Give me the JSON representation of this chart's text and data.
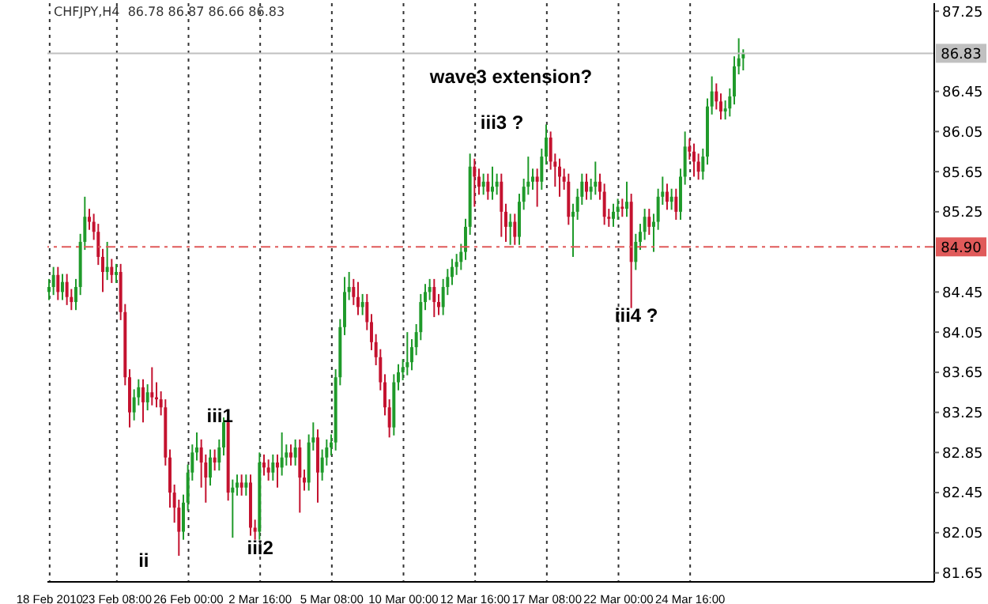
{
  "chart_data": {
    "type": "candlestick",
    "title": "CHFJPY,H4  86.78 86.87 86.66 86.83",
    "categories": [
      "18 Feb 2010",
      null,
      null,
      null,
      null,
      null,
      null,
      null,
      null,
      null,
      null,
      null,
      null,
      null,
      null,
      "23 Feb 08:00",
      null,
      null,
      null,
      null,
      null,
      null,
      null,
      null,
      null,
      null,
      null,
      null,
      null,
      null,
      null,
      "26 Feb 00:00",
      null,
      null,
      null,
      null,
      null,
      null,
      null,
      null,
      null,
      null,
      null,
      null,
      null,
      null,
      null,
      "2 Mar 16:00",
      null,
      null,
      null,
      null,
      null,
      null,
      null,
      null,
      null,
      null,
      null,
      null,
      null,
      null,
      null,
      "5 Mar 08:00",
      null,
      null,
      null,
      null,
      null,
      null,
      null,
      null,
      null,
      null,
      null,
      null,
      null,
      null,
      null,
      "10 Mar 00:00",
      null,
      null,
      null,
      null,
      null,
      null,
      null,
      null,
      null,
      null,
      null,
      null,
      null,
      null,
      null,
      "12 Mar 16:00",
      null,
      null,
      null,
      null,
      null,
      null,
      null,
      null,
      null,
      null,
      null,
      null,
      null,
      null,
      null,
      "17 Mar 08:00",
      null,
      null,
      null,
      null,
      null,
      null,
      null,
      null,
      null,
      null,
      null,
      null,
      null,
      null,
      null,
      "22 Mar 00:00",
      null,
      null,
      null,
      null,
      null,
      null,
      null,
      null,
      null,
      null,
      null,
      null,
      null,
      null,
      null,
      "24 Mar 16:00",
      null,
      null,
      null,
      null,
      null,
      null,
      null,
      null,
      null,
      null,
      null,
      null,
      null,
      null,
      null,
      null,
      null,
      null,
      null,
      null,
      null,
      null,
      null,
      null,
      null,
      null,
      null,
      null,
      null,
      null,
      null,
      null,
      null,
      null,
      null,
      null,
      null,
      null,
      null,
      null,
      null,
      null,
      null,
      null,
      null,
      null,
      null,
      null,
      null,
      null,
      null,
      null,
      null,
      null
    ],
    "ohlc": [
      [
        84.45,
        84.58,
        84.37,
        84.5
      ],
      [
        84.5,
        84.7,
        84.42,
        84.62
      ],
      [
        84.62,
        84.7,
        84.37,
        84.45
      ],
      [
        84.45,
        84.63,
        84.37,
        84.55
      ],
      [
        84.55,
        84.63,
        84.32,
        84.4
      ],
      [
        84.4,
        84.48,
        84.27,
        84.35
      ],
      [
        84.35,
        84.58,
        84.27,
        84.5
      ],
      [
        84.5,
        85.03,
        84.42,
        84.95
      ],
      [
        84.95,
        85.4,
        84.87,
        85.2
      ],
      [
        85.2,
        85.28,
        85.07,
        85.15
      ],
      [
        85.15,
        85.23,
        84.97,
        85.05
      ],
      [
        85.05,
        85.13,
        84.72,
        84.8
      ],
      [
        84.8,
        84.88,
        84.45,
        84.65
      ],
      [
        84.65,
        84.95,
        84.57,
        84.7
      ],
      [
        84.7,
        84.78,
        84.54,
        84.62
      ],
      [
        84.62,
        84.73,
        84.54,
        84.65
      ],
      [
        84.65,
        84.73,
        84.17,
        84.25
      ],
      [
        84.25,
        84.33,
        83.52,
        83.6
      ],
      [
        83.6,
        83.68,
        83.1,
        83.25
      ],
      [
        83.25,
        83.48,
        83.17,
        83.4
      ],
      [
        83.4,
        83.58,
        83.32,
        83.5
      ],
      [
        83.5,
        83.58,
        83.15,
        83.35
      ],
      [
        83.35,
        83.53,
        83.27,
        83.45
      ],
      [
        83.45,
        83.7,
        83.32,
        83.4
      ],
      [
        83.4,
        83.55,
        83.3,
        83.38
      ],
      [
        83.38,
        83.46,
        83.22,
        83.3
      ],
      [
        83.3,
        83.38,
        82.72,
        82.8
      ],
      [
        82.8,
        82.88,
        82.3,
        82.45
      ],
      [
        82.45,
        82.53,
        82.15,
        82.3
      ],
      [
        82.3,
        82.38,
        81.82,
        82.06
      ],
      [
        82.06,
        82.43,
        81.98,
        82.35
      ],
      [
        82.35,
        82.73,
        82.27,
        82.65
      ],
      [
        82.65,
        82.93,
        82.57,
        82.85
      ],
      [
        82.85,
        83.05,
        82.77,
        82.9
      ],
      [
        82.9,
        82.98,
        82.5,
        82.75
      ],
      [
        82.75,
        82.83,
        82.35,
        82.6
      ],
      [
        82.6,
        82.88,
        82.52,
        82.8
      ],
      [
        82.8,
        82.88,
        82.67,
        82.75
      ],
      [
        82.75,
        82.98,
        82.67,
        82.9
      ],
      [
        82.9,
        83.2,
        82.82,
        83.15
      ],
      [
        83.15,
        83.2,
        82.37,
        82.45
      ],
      [
        82.45,
        82.58,
        82.0,
        82.5
      ],
      [
        82.5,
        82.63,
        82.42,
        82.55
      ],
      [
        82.55,
        82.63,
        82.42,
        82.5
      ],
      [
        82.5,
        82.63,
        82.42,
        82.55
      ],
      [
        82.55,
        82.63,
        82.02,
        82.1
      ],
      [
        82.1,
        82.18,
        81.98,
        82.06
      ],
      [
        82.06,
        82.85,
        81.98,
        82.75
      ],
      [
        82.75,
        82.83,
        82.62,
        82.7
      ],
      [
        82.7,
        82.78,
        82.57,
        82.65
      ],
      [
        82.65,
        82.83,
        82.57,
        82.75
      ],
      [
        82.75,
        82.83,
        82.5,
        82.7
      ],
      [
        82.7,
        83.05,
        82.62,
        82.8
      ],
      [
        82.8,
        82.93,
        82.72,
        82.85
      ],
      [
        82.85,
        82.93,
        82.72,
        82.8
      ],
      [
        82.8,
        82.98,
        82.72,
        82.9
      ],
      [
        82.9,
        82.98,
        82.25,
        82.6
      ],
      [
        82.6,
        82.68,
        82.47,
        82.55
      ],
      [
        82.55,
        83.03,
        82.47,
        82.95
      ],
      [
        82.95,
        83.15,
        82.87,
        83.0
      ],
      [
        83.0,
        83.08,
        82.35,
        82.65
      ],
      [
        82.65,
        82.88,
        82.57,
        82.8
      ],
      [
        82.8,
        82.98,
        82.72,
        82.9
      ],
      [
        82.9,
        83.03,
        82.82,
        82.95
      ],
      [
        82.95,
        83.68,
        82.87,
        83.6
      ],
      [
        83.6,
        84.18,
        83.52,
        84.1
      ],
      [
        84.1,
        84.6,
        84.02,
        84.45
      ],
      [
        84.45,
        84.65,
        84.37,
        84.5
      ],
      [
        84.5,
        84.58,
        84.32,
        84.4
      ],
      [
        84.4,
        84.55,
        84.22,
        84.3
      ],
      [
        84.3,
        84.43,
        84.22,
        84.35
      ],
      [
        84.35,
        84.43,
        84.07,
        84.15
      ],
      [
        84.15,
        84.23,
        83.87,
        83.95
      ],
      [
        83.95,
        84.03,
        83.72,
        83.8
      ],
      [
        83.8,
        83.88,
        83.47,
        83.55
      ],
      [
        83.55,
        83.63,
        83.22,
        83.3
      ],
      [
        83.3,
        83.38,
        83.0,
        83.1
      ],
      [
        83.1,
        83.63,
        83.02,
        83.55
      ],
      [
        83.55,
        83.73,
        83.47,
        83.65
      ],
      [
        83.65,
        83.78,
        83.57,
        83.7
      ],
      [
        83.7,
        84.05,
        83.62,
        83.75
      ],
      [
        83.75,
        83.98,
        83.67,
        83.9
      ],
      [
        83.9,
        84.13,
        83.82,
        84.05
      ],
      [
        84.05,
        84.43,
        83.97,
        84.35
      ],
      [
        84.35,
        84.53,
        84.27,
        84.45
      ],
      [
        84.45,
        84.58,
        84.37,
        84.5
      ],
      [
        84.5,
        84.58,
        84.2,
        84.35
      ],
      [
        84.35,
        84.43,
        84.22,
        84.3
      ],
      [
        84.3,
        84.58,
        84.22,
        84.5
      ],
      [
        84.5,
        84.68,
        84.42,
        84.6
      ],
      [
        84.6,
        84.78,
        84.52,
        84.7
      ],
      [
        84.7,
        84.83,
        84.62,
        84.75
      ],
      [
        84.75,
        84.93,
        84.67,
        84.85
      ],
      [
        84.85,
        85.18,
        84.77,
        85.1
      ],
      [
        85.1,
        85.83,
        85.02,
        85.7
      ],
      [
        85.7,
        85.78,
        85.3,
        85.6
      ],
      [
        85.6,
        85.68,
        85.42,
        85.5
      ],
      [
        85.5,
        85.63,
        85.42,
        85.55
      ],
      [
        85.55,
        85.63,
        85.37,
        85.45
      ],
      [
        85.45,
        85.7,
        85.37,
        85.5
      ],
      [
        85.5,
        85.63,
        85.42,
        85.55
      ],
      [
        85.55,
        85.63,
        85.0,
        85.25
      ],
      [
        85.25,
        85.33,
        84.95,
        85.1
      ],
      [
        85.1,
        85.23,
        84.92,
        85.15
      ],
      [
        85.15,
        85.23,
        84.92,
        85.0
      ],
      [
        85.0,
        85.43,
        84.92,
        85.35
      ],
      [
        85.35,
        85.58,
        85.27,
        85.5
      ],
      [
        85.5,
        85.8,
        85.42,
        85.55
      ],
      [
        85.55,
        85.68,
        85.47,
        85.6
      ],
      [
        85.6,
        85.68,
        85.3,
        85.55
      ],
      [
        85.55,
        85.88,
        85.47,
        85.8
      ],
      [
        85.8,
        86.12,
        85.72,
        85.99
      ],
      [
        85.99,
        86.05,
        85.67,
        85.75
      ],
      [
        85.75,
        85.83,
        85.5,
        85.7
      ],
      [
        85.7,
        85.78,
        85.4,
        85.6
      ],
      [
        85.6,
        85.68,
        85.47,
        85.55
      ],
      [
        85.55,
        85.63,
        85.12,
        85.2
      ],
      [
        85.2,
        85.33,
        84.8,
        85.25
      ],
      [
        85.25,
        85.48,
        85.17,
        85.4
      ],
      [
        85.4,
        85.63,
        85.32,
        85.55
      ],
      [
        85.55,
        85.63,
        85.37,
        85.45
      ],
      [
        85.45,
        85.58,
        85.37,
        85.5
      ],
      [
        85.5,
        85.75,
        85.42,
        85.55
      ],
      [
        85.55,
        85.63,
        85.37,
        85.45
      ],
      [
        85.45,
        85.53,
        85.12,
        85.2
      ],
      [
        85.2,
        85.28,
        85.1,
        85.18
      ],
      [
        85.18,
        85.33,
        85.1,
        85.25
      ],
      [
        85.25,
        85.38,
        85.17,
        85.3
      ],
      [
        85.3,
        85.38,
        85.2,
        85.28
      ],
      [
        85.28,
        85.55,
        85.2,
        85.35
      ],
      [
        85.35,
        85.43,
        84.29,
        84.75
      ],
      [
        84.75,
        85.03,
        84.67,
        84.95
      ],
      [
        84.95,
        85.13,
        84.87,
        85.05
      ],
      [
        85.05,
        85.28,
        84.97,
        85.2
      ],
      [
        85.2,
        85.28,
        85.02,
        85.1
      ],
      [
        85.1,
        85.23,
        84.85,
        85.15
      ],
      [
        85.15,
        85.48,
        85.07,
        85.4
      ],
      [
        85.4,
        85.6,
        85.32,
        85.45
      ],
      [
        85.45,
        85.53,
        85.27,
        85.35
      ],
      [
        85.35,
        85.48,
        85.27,
        85.4
      ],
      [
        85.4,
        85.48,
        85.17,
        85.25
      ],
      [
        85.25,
        85.68,
        85.17,
        85.6
      ],
      [
        85.6,
        86.05,
        85.52,
        85.9
      ],
      [
        85.9,
        85.98,
        85.77,
        85.85
      ],
      [
        85.85,
        85.93,
        85.6,
        85.75
      ],
      [
        85.75,
        85.83,
        85.57,
        85.65
      ],
      [
        85.65,
        85.88,
        85.57,
        85.8
      ],
      [
        85.8,
        86.38,
        85.72,
        86.3
      ],
      [
        86.3,
        86.6,
        86.22,
        86.45
      ],
      [
        86.45,
        86.53,
        86.27,
        86.35
      ],
      [
        86.35,
        86.43,
        86.17,
        86.25
      ],
      [
        86.25,
        86.36,
        86.17,
        86.28
      ],
      [
        86.28,
        86.48,
        86.2,
        86.4
      ],
      [
        86.4,
        86.8,
        86.32,
        86.7
      ],
      [
        86.7,
        86.98,
        86.62,
        86.78
      ],
      [
        86.78,
        86.87,
        86.66,
        86.83
      ],
      null,
      null,
      null,
      null,
      null,
      null,
      null,
      null,
      null,
      null,
      null,
      null,
      null,
      null,
      null,
      null,
      null,
      null,
      null,
      null,
      null,
      null,
      null,
      null,
      null,
      null,
      null,
      null,
      null,
      null,
      null,
      null,
      null,
      null,
      null,
      null,
      null,
      null,
      null,
      null,
      null,
      null
    ],
    "ylim": [
      81.56,
      87.33
    ],
    "yticks": [
      87.25,
      86.45,
      86.05,
      85.65,
      85.25,
      84.45,
      84.05,
      83.65,
      83.25,
      82.85,
      82.45,
      82.05,
      81.65
    ],
    "grid": "x",
    "ref_lines": [
      {
        "axis": "y",
        "value": 86.83,
        "label": "86.83",
        "color": "#c0c0c0",
        "line_style": "solid"
      },
      {
        "axis": "y",
        "value": 84.9,
        "label": "84.90",
        "color": "#e05a5a",
        "line_style": "dashed"
      }
    ],
    "annotations": [
      "wave3 extension?",
      "iii3 ?",
      "iii1",
      "iii4 ?",
      "ii",
      "iii2"
    ]
  }
}
